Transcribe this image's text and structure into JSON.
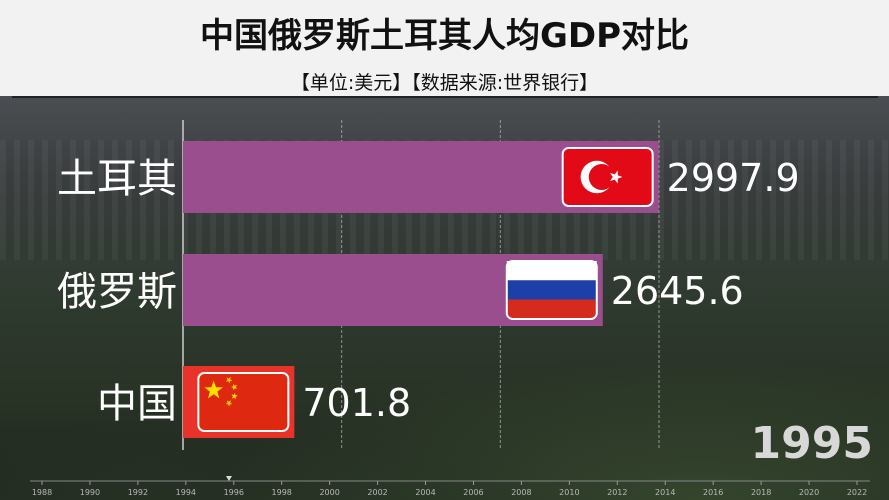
{
  "header": {
    "title": "中国俄罗斯土耳其人均GDP对比",
    "subtitle": "【单位:美元】【数据来源:世界银行】"
  },
  "year_display": "1995",
  "chart_data": {
    "type": "bar",
    "orientation": "horizontal",
    "title": "中国俄罗斯土耳其人均GDP对比",
    "subtitle": "【单位:美元】【数据来源:世界银行】",
    "categories": [
      "土耳其",
      "俄罗斯",
      "中国"
    ],
    "values": [
      2997.9,
      2645.6,
      701.8
    ],
    "value_labels": [
      "2997.9",
      "2645.6",
      "701.8"
    ],
    "bar_colors": [
      "#9b4e8e",
      "#9b4e8e",
      "#e8322a"
    ],
    "flags": [
      "turkey-flag-icon",
      "russia-flag-icon",
      "china-flag-icon"
    ],
    "xlim": [
      0,
      3000
    ],
    "gridlines": [
      1000,
      2000,
      3000
    ],
    "current_year": "1995",
    "timeline": {
      "ticks": [
        "1988",
        "1990",
        "1992",
        "1994",
        "1996",
        "1998",
        "2000",
        "2002",
        "2004",
        "2006",
        "2008",
        "2010",
        "2012",
        "2014",
        "2016",
        "2018",
        "2020",
        "2022"
      ],
      "range": [
        1988,
        2023
      ],
      "marker_year": 1995.8
    }
  }
}
